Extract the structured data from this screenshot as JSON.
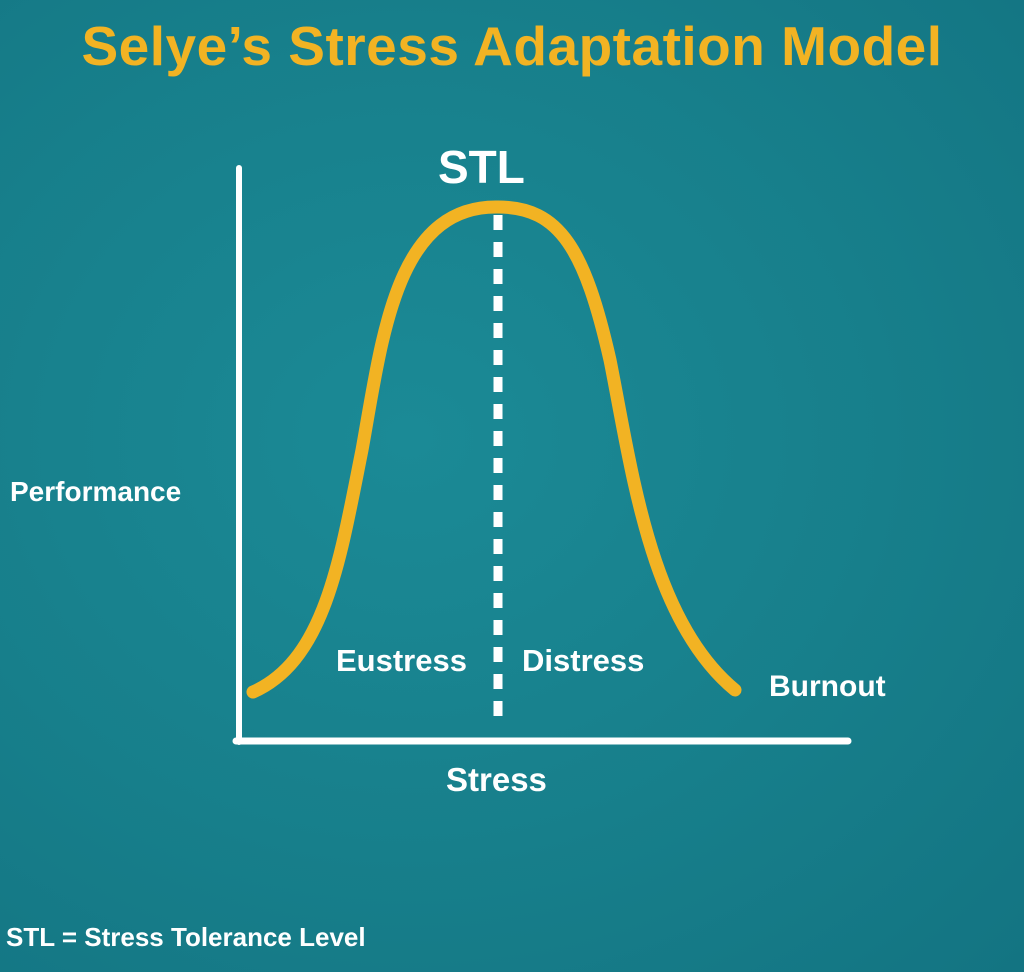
{
  "title": "Selye’s Stress Adaptation Model",
  "labels": {
    "peak": "STL",
    "y_axis": "Performance",
    "x_axis": "Stress",
    "left_region": "Eustress",
    "right_region": "Distress",
    "tail": "Burnout"
  },
  "footnote": "STL = Stress Tolerance Level",
  "colors": {
    "background": "#17808c",
    "curve": "#f2b323",
    "title": "#f2b323",
    "lines": "#ffffff"
  }
}
